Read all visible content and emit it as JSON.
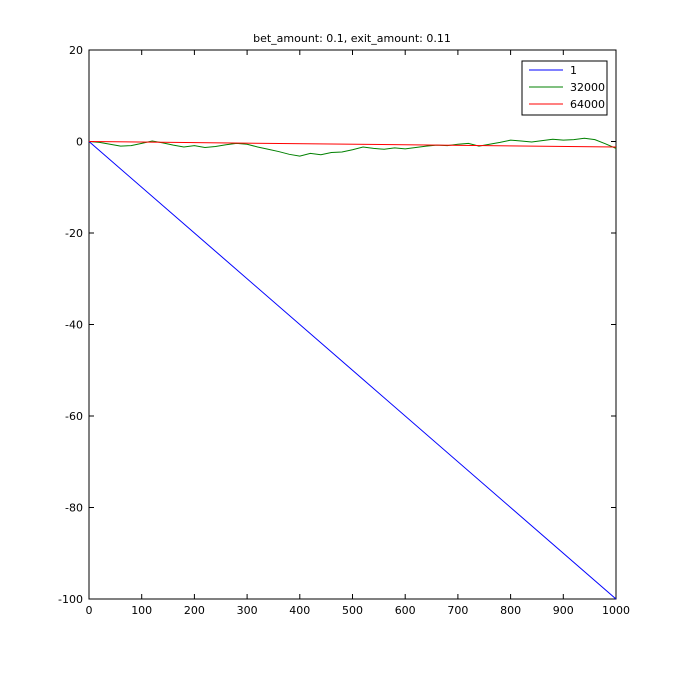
{
  "chart_data": {
    "type": "line",
    "title": "bet_amount: 0.1, exit_amount: 0.11",
    "xlabel": "",
    "ylabel": "",
    "xlim": [
      0,
      1000
    ],
    "ylim": [
      -100,
      20
    ],
    "xticks": [
      0,
      100,
      200,
      300,
      400,
      500,
      600,
      700,
      800,
      900,
      1000
    ],
    "yticks": [
      -100,
      -80,
      -60,
      -40,
      -20,
      0,
      20
    ],
    "grid": false,
    "legend_position": "top-right",
    "series": [
      {
        "name": "1",
        "color": "#0000ff",
        "x": [
          0,
          1000
        ],
        "y": [
          0,
          -100
        ]
      },
      {
        "name": "32000",
        "color": "#008000",
        "x": [
          0,
          20,
          40,
          60,
          80,
          100,
          120,
          140,
          160,
          180,
          200,
          220,
          240,
          260,
          280,
          300,
          320,
          340,
          360,
          380,
          400,
          420,
          440,
          460,
          480,
          500,
          520,
          540,
          560,
          580,
          600,
          620,
          640,
          660,
          680,
          700,
          720,
          740,
          760,
          780,
          800,
          820,
          840,
          860,
          880,
          900,
          920,
          940,
          960,
          980,
          1000
        ],
        "y": [
          0,
          -0.2,
          -0.6,
          -1.0,
          -0.9,
          -0.4,
          0.1,
          -0.3,
          -0.8,
          -1.2,
          -0.9,
          -1.3,
          -1.1,
          -0.7,
          -0.4,
          -0.6,
          -1.2,
          -1.7,
          -2.2,
          -2.8,
          -3.2,
          -2.6,
          -2.9,
          -2.4,
          -2.3,
          -1.8,
          -1.2,
          -1.5,
          -1.7,
          -1.4,
          -1.6,
          -1.3,
          -1.0,
          -0.8,
          -0.9,
          -0.6,
          -0.4,
          -1.0,
          -0.6,
          -0.2,
          0.3,
          0.1,
          -0.1,
          0.2,
          0.5,
          0.3,
          0.4,
          0.7,
          0.4,
          -0.5,
          -1.5
        ]
      },
      {
        "name": "64000",
        "color": "#ff0000",
        "x": [
          0,
          1000
        ],
        "y": [
          0,
          -1.2
        ]
      }
    ]
  }
}
